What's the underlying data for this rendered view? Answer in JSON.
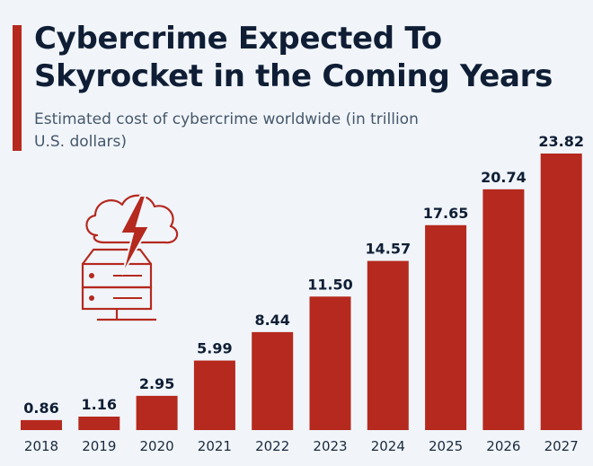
{
  "header": {
    "title": "Cybercrime Expected To Skyrocket in the Coming Years",
    "subtitle": "Estimated cost of cybercrime worldwide (in trillion U.S. dollars)"
  },
  "icon": "cloud-server-lightning-icon",
  "colors": {
    "bar": "#b5291e",
    "accent": "#b5291e",
    "text": "#0f1e35",
    "background": "#f1f5fa"
  },
  "chart_data": {
    "type": "bar",
    "categories": [
      "2018",
      "2019",
      "2020",
      "2021",
      "2022",
      "2023",
      "2024",
      "2025",
      "2026",
      "2027"
    ],
    "values": [
      0.86,
      1.16,
      2.95,
      5.99,
      8.44,
      11.5,
      14.57,
      17.65,
      20.74,
      23.82
    ],
    "value_labels": [
      "0.86",
      "1.16",
      "2.95",
      "5.99",
      "8.44",
      "11.50",
      "14.57",
      "17.65",
      "20.74",
      "23.82"
    ],
    "title": "Cybercrime Expected To Skyrocket in the Coming Years",
    "subtitle": "Estimated cost of cybercrime worldwide (in trillion U.S. dollars)",
    "xlabel": "",
    "ylabel": "",
    "ylim": [
      0,
      23.82
    ],
    "grid": false,
    "legend": "none"
  }
}
